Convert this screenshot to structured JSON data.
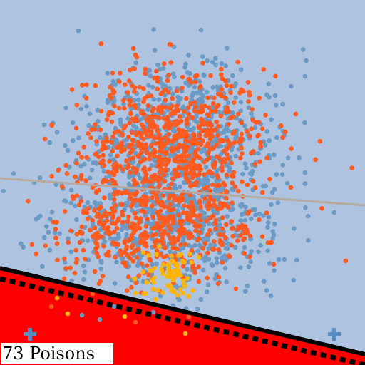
{
  "hud": {
    "counter_label": "73 Poisons"
  },
  "colors": {
    "field": "#aec3df",
    "danger_zone": "#ff0000",
    "boundary_line": "#000000",
    "player_dot": "#6b9ac4",
    "enemy_dot": "#ff5a1f",
    "food_dot": "#ffb40a",
    "aim_line": "#b4aaa0",
    "spawn_marker": "#5b8ec0"
  },
  "icons": {
    "spawn_left": "plus-marker-icon",
    "spawn_right": "plus-marker-icon"
  }
}
